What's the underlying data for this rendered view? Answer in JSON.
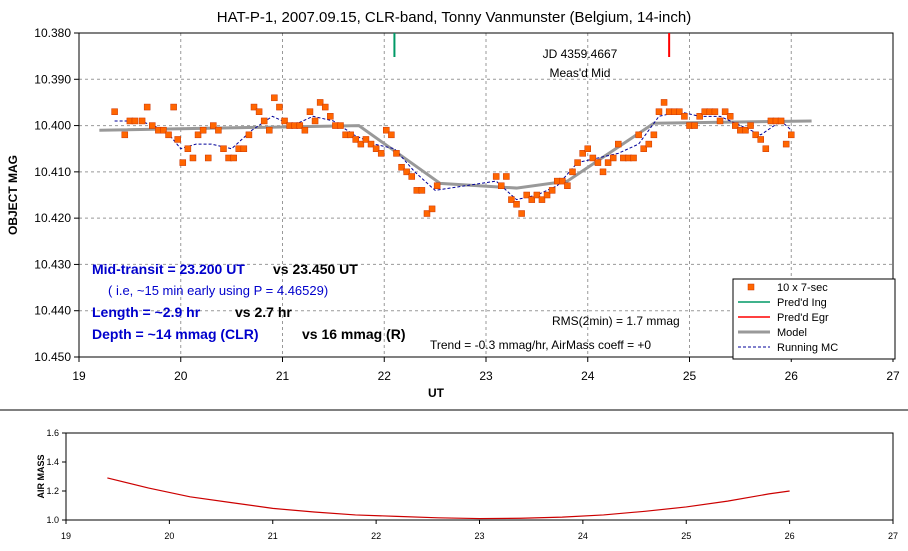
{
  "chart_data": [
    {
      "type": "scatter",
      "title": "HAT-P-1, 2007.09.15, CLR-band, Tonny Vanmunster (Belgium, 14-inch)",
      "xlabel": "UT",
      "ylabel": "OBJECT MAG",
      "xlim": [
        19,
        27
      ],
      "ylim": [
        10.38,
        10.45
      ],
      "y_inverted": true,
      "x_ticks": [
        "19",
        "20",
        "21",
        "22",
        "23",
        "24",
        "25",
        "26",
        "27"
      ],
      "y_ticks": [
        "10.380",
        "10.390",
        "10.400",
        "10.410",
        "10.420",
        "10.430",
        "10.440",
        "10.450"
      ],
      "grid": true,
      "legend_position": "bottom-right",
      "colors": {
        "points": "#ff6600",
        "ingress": "#009966",
        "egress": "#ff0000",
        "model": "#999999",
        "running": "#000099"
      },
      "series": [
        {
          "name": "10 x 7-sec",
          "style": "markers",
          "x": [
            19.35,
            19.45,
            19.5,
            19.55,
            19.62,
            19.67,
            19.72,
            19.78,
            19.83,
            19.88,
            19.93,
            19.97,
            20.02,
            20.07,
            20.12,
            20.17,
            20.22,
            20.27,
            20.32,
            20.37,
            20.42,
            20.47,
            20.52,
            20.57,
            20.62,
            20.67,
            20.72,
            20.77,
            20.82,
            20.87,
            20.92,
            20.97,
            21.02,
            21.07,
            21.12,
            21.17,
            21.22,
            21.27,
            21.32,
            21.37,
            21.42,
            21.47,
            21.52,
            21.57,
            21.62,
            21.67,
            21.72,
            21.77,
            21.82,
            21.87,
            21.92,
            21.97,
            22.02,
            22.07,
            22.12,
            22.17,
            22.22,
            22.27,
            22.32,
            22.37,
            22.42,
            22.47,
            22.52,
            23.1,
            23.15,
            23.2,
            23.25,
            23.3,
            23.35,
            23.4,
            23.45,
            23.5,
            23.55,
            23.6,
            23.65,
            23.7,
            23.75,
            23.8,
            23.85,
            23.9,
            23.95,
            24.0,
            24.05,
            24.1,
            24.15,
            24.2,
            24.25,
            24.3,
            24.35,
            24.4,
            24.45,
            24.5,
            24.55,
            24.6,
            24.65,
            24.7,
            24.75,
            24.8,
            24.85,
            24.9,
            24.95,
            25.0,
            25.05,
            25.1,
            25.15,
            25.2,
            25.25,
            25.3,
            25.35,
            25.4,
            25.45,
            25.5,
            25.55,
            25.6,
            25.65,
            25.7,
            25.75,
            25.8,
            25.85,
            25.9,
            25.95,
            26.0
          ],
          "y": [
            10.397,
            10.402,
            10.399,
            10.399,
            10.399,
            10.396,
            10.4,
            10.401,
            10.401,
            10.402,
            10.396,
            10.403,
            10.408,
            10.405,
            10.407,
            10.402,
            10.401,
            10.407,
            10.4,
            10.401,
            10.405,
            10.407,
            10.407,
            10.405,
            10.405,
            10.402,
            10.396,
            10.397,
            10.399,
            10.401,
            10.394,
            10.396,
            10.399,
            10.4,
            10.4,
            10.4,
            10.401,
            10.397,
            10.399,
            10.395,
            10.396,
            10.398,
            10.4,
            10.4,
            10.402,
            10.402,
            10.403,
            10.404,
            10.403,
            10.404,
            10.405,
            10.406,
            10.401,
            10.402,
            10.406,
            10.409,
            10.41,
            10.411,
            10.414,
            10.414,
            10.419,
            10.418,
            10.413,
            10.411,
            10.413,
            10.411,
            10.416,
            10.417,
            10.419,
            10.415,
            10.416,
            10.415,
            10.416,
            10.415,
            10.414,
            10.412,
            10.412,
            10.413,
            10.41,
            10.408,
            10.406,
            10.405,
            10.407,
            10.408,
            10.41,
            10.408,
            10.407,
            10.404,
            10.407,
            10.407,
            10.407,
            10.402,
            10.405,
            10.404,
            10.402,
            10.397,
            10.395,
            10.397,
            10.397,
            10.397,
            10.398,
            10.4,
            10.4,
            10.398,
            10.397,
            10.397,
            10.397,
            10.399,
            10.397,
            10.398,
            10.4,
            10.401,
            10.401,
            10.4,
            10.402,
            10.403,
            10.405,
            10.399,
            10.399,
            10.399,
            10.404,
            10.402
          ]
        },
        {
          "name": "Pred'd Ing",
          "style": "vline",
          "x": 22.1
        },
        {
          "name": "Pred'd Egr",
          "style": "vline",
          "x": 24.8
        },
        {
          "name": "Model",
          "style": "line",
          "x": [
            19.2,
            21.75,
            22.55,
            23.3,
            23.8,
            24.65,
            26.2
          ],
          "y": [
            10.401,
            10.4,
            10.4125,
            10.4135,
            10.412,
            10.3995,
            10.399
          ]
        },
        {
          "name": "Running MC",
          "style": "dashed",
          "x": [
            19.35,
            19.6,
            19.85,
            20.0,
            20.15,
            20.3,
            20.5,
            20.7,
            20.9,
            21.1,
            21.3,
            21.5,
            21.7,
            21.9,
            22.1,
            22.3,
            22.5,
            23.1,
            23.3,
            23.5,
            23.7,
            23.9,
            24.1,
            24.3,
            24.5,
            24.7,
            24.9,
            25.1,
            25.3,
            25.5,
            25.7,
            25.9,
            26.0
          ],
          "y": [
            10.399,
            10.399,
            10.401,
            10.405,
            10.404,
            10.404,
            10.405,
            10.401,
            10.398,
            10.4,
            10.398,
            10.399,
            10.402,
            10.404,
            10.405,
            10.41,
            10.414,
            10.412,
            10.416,
            10.415,
            10.413,
            10.408,
            10.407,
            10.406,
            10.404,
            10.398,
            10.397,
            10.398,
            10.398,
            10.4,
            10.402,
            10.399,
            10.401
          ]
        }
      ],
      "annotations": {
        "jd": "JD 4359.4667",
        "meas": "Meas'd Mid",
        "mid_transit": "Mid-transit = 23.200 UT",
        "mid_vs": "vs 23.450 UT",
        "note": "( i.e, ~15 min early using P = 4.46529)",
        "length": "Length = ~2.9 hr",
        "length_vs": "vs 2.7 hr",
        "depth": "Depth = ~14 mmag (CLR)",
        "depth_vs": "vs 16 mmag (R)",
        "rms": "RMS(2min) = 1.7 mmag",
        "trend": "Trend = -0.3 mmag/hr, AirMass coeff = +0"
      }
    },
    {
      "type": "line",
      "ylabel": "AIR MASS",
      "xlim": [
        19,
        27
      ],
      "ylim": [
        1.0,
        1.6
      ],
      "x_ticks": [
        "19",
        "20",
        "21",
        "22",
        "23",
        "24",
        "25",
        "26",
        "27"
      ],
      "y_ticks": [
        "1.0",
        "1.2",
        "1.4",
        "1.6"
      ],
      "grid": false,
      "color": "#cc0000",
      "series": [
        {
          "x": [
            19.4,
            19.8,
            20.2,
            20.6,
            21.0,
            21.4,
            21.8,
            22.2,
            22.6,
            23.0,
            23.4,
            23.8,
            24.2,
            24.6,
            25.0,
            25.4,
            25.8,
            26.0
          ],
          "y": [
            1.29,
            1.22,
            1.16,
            1.12,
            1.08,
            1.055,
            1.035,
            1.025,
            1.015,
            1.01,
            1.012,
            1.02,
            1.035,
            1.06,
            1.09,
            1.13,
            1.18,
            1.2
          ]
        }
      ]
    }
  ]
}
